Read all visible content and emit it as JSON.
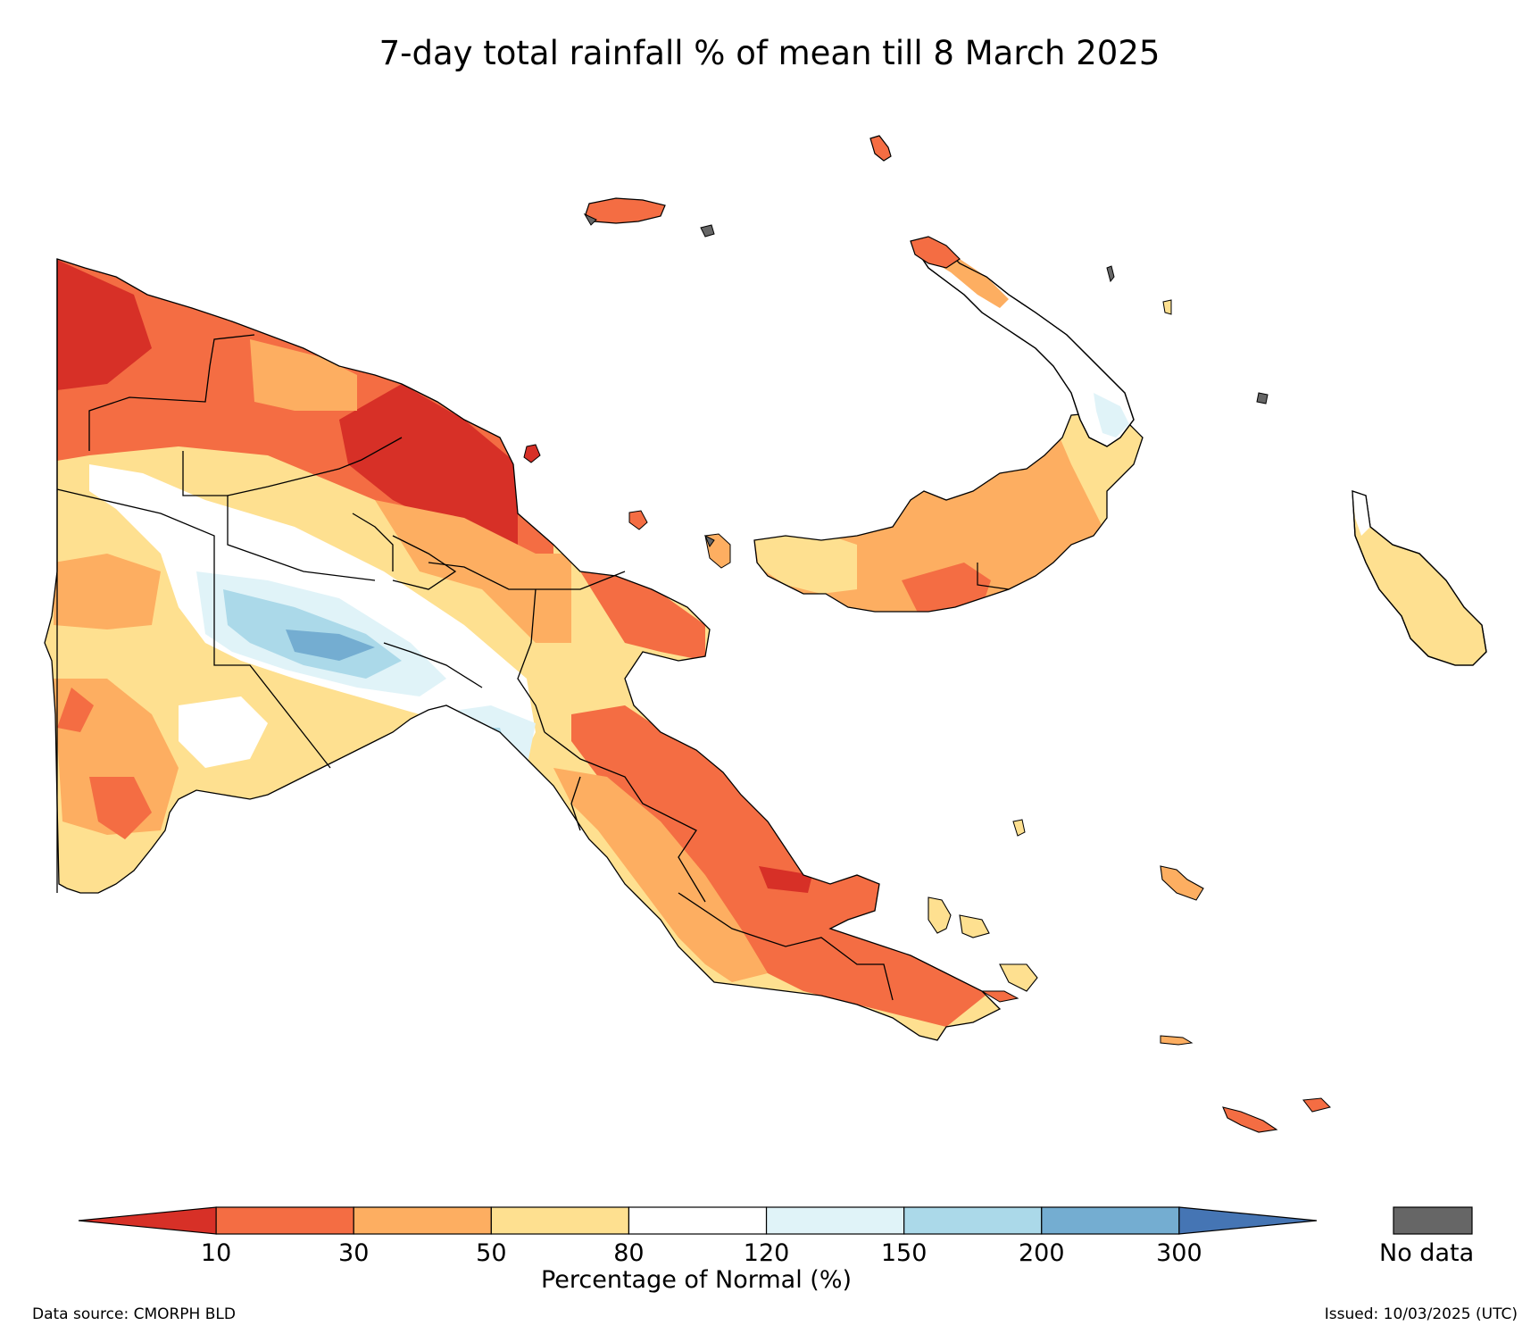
{
  "title": "7-day total rainfall % of mean till 8 March 2025",
  "legend": {
    "label": "Percentage of Normal (%)",
    "ticks": [
      "10",
      "30",
      "50",
      "80",
      "120",
      "150",
      "200",
      "300"
    ],
    "bins": [
      {
        "range": "<10",
        "color": "#d73027"
      },
      {
        "range": "10-30",
        "color": "#f46d43"
      },
      {
        "range": "30-50",
        "color": "#fdae61"
      },
      {
        "range": "50-80",
        "color": "#fee090"
      },
      {
        "range": "80-120",
        "color": "#ffffff"
      },
      {
        "range": "120-150",
        "color": "#e0f3f8"
      },
      {
        "range": "150-200",
        "color": "#abd9e9"
      },
      {
        "range": "200-300",
        "color": "#74add1"
      },
      {
        "range": ">300",
        "color": "#4575b4"
      }
    ],
    "nodata_label": "No data",
    "nodata_color": "#666666"
  },
  "footer": {
    "source": "Data source: CMORPH BLD",
    "issued": "Issued: 10/03/2025 (UTC)"
  }
}
